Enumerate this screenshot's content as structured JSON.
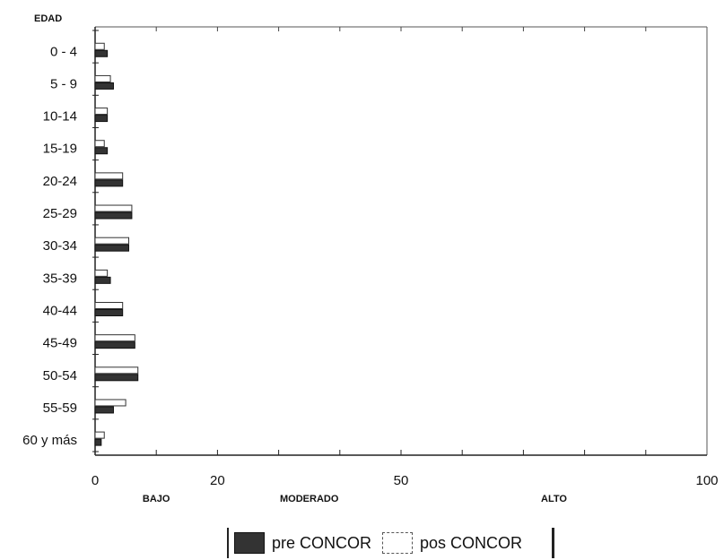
{
  "chart_data": {
    "type": "bar",
    "orientation": "horizontal",
    "y_axis_title": "EDAD",
    "categories": [
      "0 - 4",
      "5 - 9",
      "10-14",
      "15-19",
      "20-24",
      "25-29",
      "30-34",
      "35-39",
      "40-44",
      "45-49",
      "50-54",
      "55-59",
      "60 y más"
    ],
    "series": [
      {
        "name": "pre CONCOR",
        "color": "#333333",
        "values": [
          2,
          3,
          2,
          2,
          4.5,
          6,
          5.5,
          2.5,
          4.5,
          6.5,
          7,
          3,
          1
        ]
      },
      {
        "name": "pos CONCOR",
        "color": "#ffffff",
        "values": [
          1.5,
          2.5,
          2,
          1.5,
          4.5,
          6,
          5.5,
          2,
          4.5,
          6.5,
          7,
          5,
          1.5
        ]
      }
    ],
    "xlim": [
      0,
      100
    ],
    "x_tick_labels": [
      {
        "value": 0,
        "label": "0"
      },
      {
        "value": 20,
        "label": "20"
      },
      {
        "value": 50,
        "label": "50"
      },
      {
        "value": 100,
        "label": "100"
      }
    ],
    "zones": [
      {
        "label": "BAJO",
        "value": 10
      },
      {
        "label": "MODERADO",
        "value": 35
      },
      {
        "label": "ALTO",
        "value": 75
      }
    ],
    "legend_position": "bottom-center",
    "grid": false
  }
}
